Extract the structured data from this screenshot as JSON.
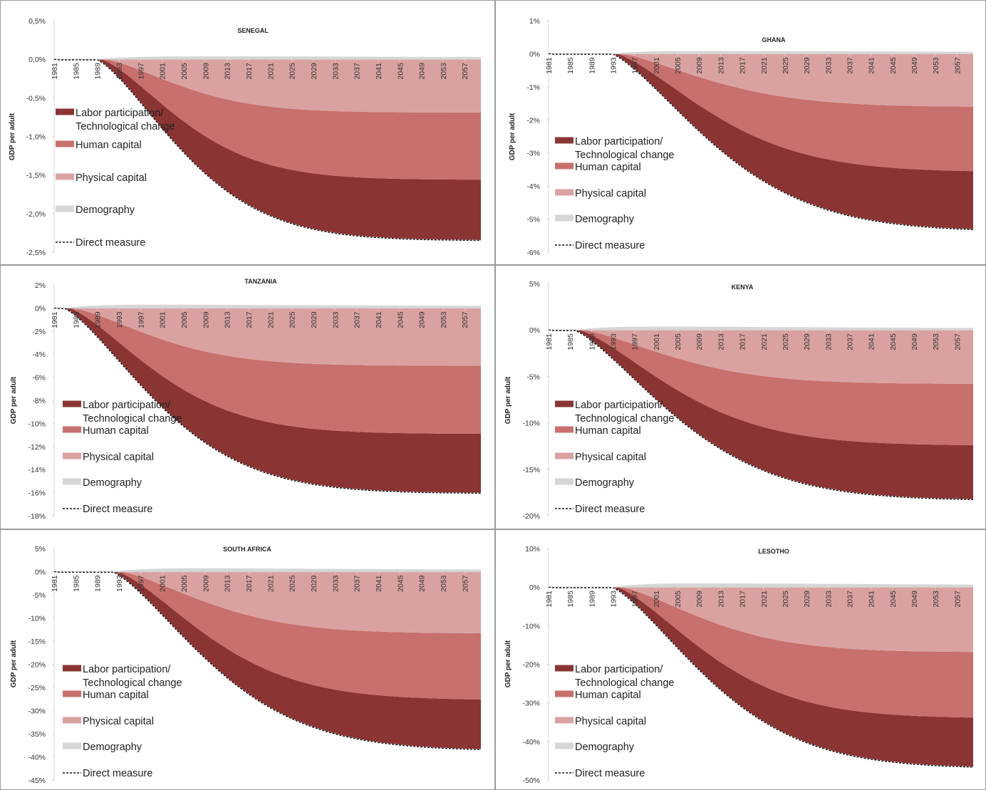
{
  "colors": {
    "labor": "#8b3434",
    "human": "#c8706d",
    "physical": "#d9a2a1",
    "demography": "#d6d6d6",
    "direct": "#111111",
    "axis": "#d4d4d4",
    "panel_border": "#9a9a9a"
  },
  "legend": {
    "labor_line1": "Labor participation/",
    "labor_line2": "Technological change",
    "human": "Human capital",
    "physical": "Physical capital",
    "demography": "Demography",
    "direct": "Direct measure"
  },
  "chart_data": [
    {
      "type": "area",
      "title": "SENEGAL",
      "ylabel": "GDP per adult",
      "ylim": [
        -2.5,
        0.5
      ],
      "y_ticks": [
        0.5,
        0,
        -0.5,
        -1,
        -1.5,
        -2,
        -2.5
      ],
      "y_tick_labels": [
        "0,5%",
        "0,0%",
        "-0,5%",
        "-1,0%",
        "-1,5%",
        "-2,0%",
        "-2,5%"
      ],
      "x_range": [
        1981,
        2060
      ],
      "x_tick_labels": [
        "1981",
        "1985",
        "1989",
        "1993",
        "1997",
        "2001",
        "2005",
        "2009",
        "2013",
        "2017",
        "2021",
        "2025",
        "2029",
        "2033",
        "2037",
        "2041",
        "2045",
        "2049",
        "2053",
        "2057"
      ],
      "onset_year": 1989,
      "shape_k": 0.7,
      "series": [
        {
          "name": "Demography",
          "final": 0.02,
          "peak": 0.04
        },
        {
          "name": "Physical capital",
          "final": -0.69
        },
        {
          "name": "Human capital",
          "final": -1.56
        },
        {
          "name": "Labor participation/ Technological change",
          "final": -2.34
        },
        {
          "name": "Direct measure",
          "final": -2.34
        }
      ]
    },
    {
      "type": "area",
      "title": "GHANA",
      "ylabel": "GDP per adult",
      "ylim": [
        -6,
        1
      ],
      "y_ticks": [
        1,
        0,
        -1,
        -2,
        -3,
        -4,
        -5,
        -6
      ],
      "y_tick_labels": [
        "1%",
        "0%",
        "-1%",
        "-2%",
        "-3%",
        "-4%",
        "-5%",
        "-6%"
      ],
      "x_range": [
        1981,
        2060
      ],
      "x_tick_labels": [
        "1981",
        "1985",
        "1989",
        "1993",
        "1997",
        "2001",
        "2005",
        "2009",
        "2013",
        "2017",
        "2021",
        "2025",
        "2029",
        "2033",
        "2037",
        "2041",
        "2045",
        "2049",
        "2053",
        "2057"
      ],
      "onset_year": 1993,
      "shape_k": 0.5,
      "series": [
        {
          "name": "Demography",
          "final": 0.03,
          "peak": 0.1
        },
        {
          "name": "Physical capital",
          "final": -1.6
        },
        {
          "name": "Human capital",
          "final": -3.55
        },
        {
          "name": "Labor participation/ Technological change",
          "final": -5.3
        },
        {
          "name": "Direct measure",
          "final": -5.3
        }
      ]
    },
    {
      "type": "area",
      "title": "TANZANIA",
      "ylabel": "GDP per adult",
      "ylim": [
        -18,
        2
      ],
      "y_ticks": [
        2,
        0,
        -2,
        -4,
        -6,
        -8,
        -10,
        -12,
        -14,
        -16,
        -18
      ],
      "y_tick_labels": [
        "2%",
        "0%",
        "-2%",
        "-4%",
        "-6%",
        "-8%",
        "-10%",
        "-12%",
        "-14%",
        "-16%",
        "-18%"
      ],
      "x_range": [
        1981,
        2060
      ],
      "x_tick_labels": [
        "1981",
        "1985",
        "1989",
        "1993",
        "1997",
        "2001",
        "2005",
        "2009",
        "2013",
        "2017",
        "2021",
        "2025",
        "2029",
        "2033",
        "2037",
        "2041",
        "2045",
        "2049",
        "2053",
        "2057"
      ],
      "onset_year": 1983,
      "shape_k": 0.6,
      "series": [
        {
          "name": "Demography",
          "final": 0.1,
          "peak": 0.35
        },
        {
          "name": "Physical capital",
          "final": -5.0
        },
        {
          "name": "Human capital",
          "final": -10.9
        },
        {
          "name": "Labor participation/ Technological change",
          "final": -16.0
        },
        {
          "name": "Direct measure",
          "final": -16.0
        }
      ]
    },
    {
      "type": "area",
      "title": "KENYA",
      "ylabel": "GDP per adult",
      "ylim": [
        -20,
        5
      ],
      "y_ticks": [
        5,
        0,
        -5,
        -10,
        -15,
        -20
      ],
      "y_tick_labels": [
        "5%",
        "0%",
        "-5%",
        "-10%",
        "-15%",
        "-20%"
      ],
      "x_range": [
        1981,
        2060
      ],
      "x_tick_labels": [
        "1981",
        "1985",
        "1989",
        "1993",
        "1997",
        "2001",
        "2005",
        "2009",
        "2013",
        "2017",
        "2021",
        "2025",
        "2029",
        "2033",
        "2037",
        "2041",
        "2045",
        "2049",
        "2053",
        "2057"
      ],
      "onset_year": 1986,
      "shape_k": 0.5,
      "series": [
        {
          "name": "Demography",
          "final": 0.1,
          "peak": 0.45
        },
        {
          "name": "Physical capital",
          "final": -5.8
        },
        {
          "name": "Human capital",
          "final": -12.4
        },
        {
          "name": "Labor participation/ Technological change",
          "final": -18.2
        },
        {
          "name": "Direct measure",
          "final": -18.2
        }
      ]
    },
    {
      "type": "area",
      "title": "SOUTH AFRICA",
      "ylabel": "GDP per adult",
      "ylim": [
        -45,
        5
      ],
      "y_ticks": [
        5,
        0,
        -5,
        -10,
        -15,
        -20,
        -25,
        -30,
        -35,
        -40,
        -45
      ],
      "y_tick_labels": [
        "5%",
        "0%",
        "-5%",
        "-10%",
        "-15%",
        "-20%",
        "-25%",
        "-30%",
        "-35%",
        "-40%",
        "-45%"
      ],
      "x_range": [
        1981,
        2060
      ],
      "x_tick_labels": [
        "1981",
        "1985",
        "1989",
        "1993",
        "1997",
        "2001",
        "2005",
        "2009",
        "2013",
        "2017",
        "2021",
        "2025",
        "2029",
        "2033",
        "2037",
        "2041",
        "2045",
        "2049",
        "2053",
        "2057"
      ],
      "onset_year": 1992,
      "shape_k": 0.55,
      "series": [
        {
          "name": "Demography",
          "final": 0.2,
          "peak": 0.9
        },
        {
          "name": "Physical capital",
          "final": -13.3
        },
        {
          "name": "Human capital",
          "final": -27.6
        },
        {
          "name": "Labor participation/ Technological change",
          "final": -38.3
        },
        {
          "name": "Direct measure",
          "final": -38.3
        }
      ]
    },
    {
      "type": "area",
      "title": "LESOTHO",
      "ylabel": "GDP per adult",
      "ylim": [
        -50,
        10
      ],
      "y_ticks": [
        10,
        0,
        -10,
        -20,
        -30,
        -40,
        -50
      ],
      "y_tick_labels": [
        "10%",
        "0%",
        "-10%",
        "-20%",
        "-30%",
        "-40%",
        "-50%"
      ],
      "x_range": [
        1981,
        2060
      ],
      "x_tick_labels": [
        "1981",
        "1985",
        "1989",
        "1993",
        "1997",
        "2001",
        "2005",
        "2009",
        "2013",
        "2017",
        "2021",
        "2025",
        "2029",
        "2033",
        "2037",
        "2041",
        "2045",
        "2049",
        "2053",
        "2057"
      ],
      "onset_year": 1993,
      "shape_k": 0.55,
      "series": [
        {
          "name": "Demography",
          "final": 0.3,
          "peak": 1.2
        },
        {
          "name": "Physical capital",
          "final": -16.8
        },
        {
          "name": "Human capital",
          "final": -33.8
        },
        {
          "name": "Labor participation/ Technological change",
          "final": -46.5
        },
        {
          "name": "Direct measure",
          "final": -46.5
        }
      ]
    }
  ]
}
